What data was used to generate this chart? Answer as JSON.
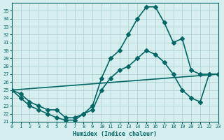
{
  "xlabel": "Humidex (Indice chaleur)",
  "background_color": "#d6eeee",
  "grid_color": "#aacccc",
  "line_color": "#006666",
  "xlim": [
    0,
    23
  ],
  "ylim": [
    21,
    36
  ],
  "xticks": [
    0,
    1,
    2,
    3,
    4,
    5,
    6,
    7,
    8,
    9,
    10,
    11,
    12,
    13,
    14,
    15,
    16,
    17,
    18,
    19,
    20,
    21,
    22,
    23
  ],
  "yticks": [
    21,
    22,
    23,
    24,
    25,
    26,
    27,
    28,
    29,
    30,
    31,
    32,
    33,
    34,
    35
  ],
  "line1_x": [
    0,
    1,
    2,
    3,
    4,
    5,
    6,
    7,
    8,
    9,
    10,
    11,
    12,
    13,
    14,
    15,
    16,
    17,
    18,
    19,
    20,
    21,
    22,
    23
  ],
  "line1_y": [
    25,
    24.5,
    23.5,
    23,
    22.5,
    22.5,
    21.5,
    21.5,
    22,
    22.5,
    25,
    26.5,
    27.5,
    28,
    29,
    30,
    29.5,
    28.5,
    27,
    25,
    24,
    23.5,
    27,
    27
  ],
  "line2_x": [
    0,
    23
  ],
  "line2_y": [
    25,
    27
  ],
  "line3_x": [
    0,
    1,
    2,
    3,
    4,
    5,
    6,
    7,
    8,
    9,
    10,
    11,
    12,
    13,
    14,
    15,
    16,
    17,
    18,
    19,
    20,
    21,
    22,
    23
  ],
  "line3_y": [
    25,
    24,
    23,
    22.5,
    22,
    21.5,
    21.2,
    21.2,
    22,
    23,
    26.5,
    29,
    30,
    32,
    34,
    35.5,
    35.5,
    33.5,
    31,
    31.5,
    27.5,
    27,
    27,
    27
  ],
  "marker_size": 3,
  "linewidth": 1.2
}
